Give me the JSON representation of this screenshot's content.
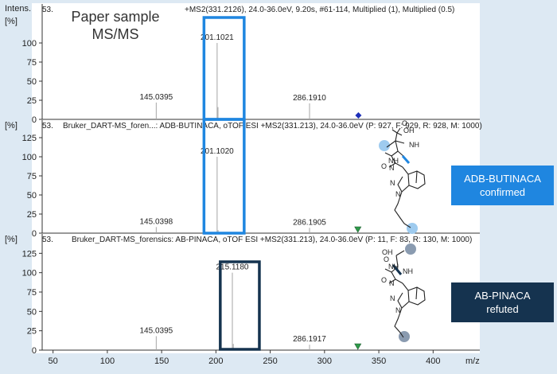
{
  "y_axis_title": "Intens.",
  "y_unit": "[%]",
  "x_axis_title": "m/z",
  "x_ticks": [
    50,
    100,
    150,
    200,
    250,
    300,
    350,
    400
  ],
  "overlay_title": {
    "line1": "Paper sample",
    "line2": "MS/MS"
  },
  "colors": {
    "confirmed_box": "#1f86e0",
    "refuted_box": "#15334f",
    "marker_blue": "#1d2fb8",
    "marker_green": "#2e9a4a",
    "bond_highlight": "#9ecbef",
    "bond_refuted": "#8a9bb0"
  },
  "badges": [
    {
      "line1": "ADB-BUTINACA",
      "line2": "confirmed"
    },
    {
      "line1": "AB-PINACA",
      "line2": "refuted"
    }
  ],
  "structure_labels": [
    "OH",
    "NH",
    "O",
    "N",
    "NH",
    "N",
    "N",
    "O",
    "OH",
    "NH",
    "O",
    "N",
    "NH",
    "N",
    "N",
    "O"
  ],
  "chart_data": [
    {
      "type": "bar",
      "name": "panel-sample",
      "header_id": "53.",
      "header": "+MS2(331.2126), 24.0-36.0eV, 9.20s, #61-114, Multiplied (1), Multiplied (0.5)",
      "ylim": [
        0,
        125
      ],
      "yticks": [
        0,
        25,
        50,
        75,
        100
      ],
      "peaks": [
        {
          "x": 145.0395,
          "y": 22,
          "label": "145.0395"
        },
        {
          "x": 201.1021,
          "y": 100,
          "label": "201.1021"
        },
        {
          "x": 201.9,
          "y": 16,
          "label": ""
        },
        {
          "x": 286.191,
          "y": 21,
          "label": "286.1910"
        }
      ],
      "precursor_marker": {
        "x": 331.2,
        "shape": "diamond",
        "color": "marker_blue"
      },
      "highlight_box": {
        "x": [
          189,
          226
        ],
        "color": "confirmed_box"
      }
    },
    {
      "type": "bar",
      "name": "panel-adb-butinaca",
      "header_id": "53.",
      "header": "Bruker_DART-MS_foren...: ADB-BUTINACA, oTOF ESI +MS2(331.213), 24.0-36.0eV (P: 927, F: 929, R: 928, M: 1000)",
      "ylim": [
        0,
        145
      ],
      "yticks": [
        0,
        25,
        50,
        75,
        100,
        125
      ],
      "peaks": [
        {
          "x": 145.0398,
          "y": 8,
          "label": "145.0398"
        },
        {
          "x": 201.102,
          "y": 100,
          "label": "201.1020"
        },
        {
          "x": 202.0,
          "y": 4,
          "label": ""
        },
        {
          "x": 286.1905,
          "y": 7,
          "label": "286.1905"
        }
      ],
      "precursor_marker": {
        "x": 330.7,
        "shape": "triangle-down",
        "color": "marker_green"
      },
      "highlight_box": {
        "x": [
          189,
          226
        ],
        "color": "confirmed_box"
      }
    },
    {
      "type": "bar",
      "name": "panel-ab-pinaca",
      "header_id": "53.",
      "header": "Bruker_DART-MS_forensics: AB-PINACA, oTOF ESI +MS2(331.213), 24.0-36.0eV (P: 11, F: 83, R: 130, M: 1000)",
      "ylim": [
        0,
        145
      ],
      "yticks": [
        0,
        25,
        50,
        75,
        100,
        125
      ],
      "peaks": [
        {
          "x": 145.0395,
          "y": 18,
          "label": "145.0395"
        },
        {
          "x": 215.118,
          "y": 100,
          "label": "215.1180"
        },
        {
          "x": 216.0,
          "y": 8,
          "label": ""
        },
        {
          "x": 286.1917,
          "y": 7,
          "label": "286.1917"
        }
      ],
      "precursor_marker": {
        "x": 330.7,
        "shape": "triangle-down",
        "color": "marker_green"
      },
      "highlight_box": {
        "x": [
          204,
          240
        ],
        "color": "refuted_box"
      }
    }
  ]
}
